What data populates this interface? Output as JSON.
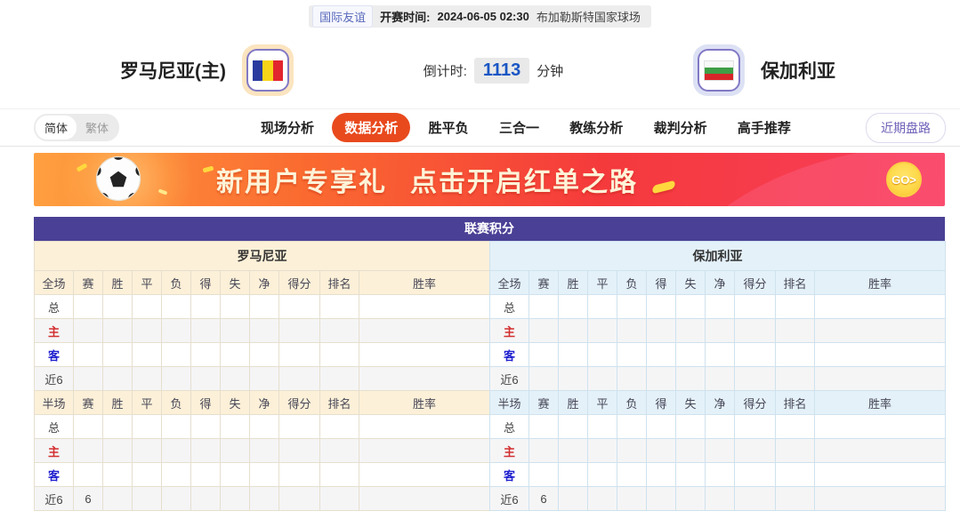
{
  "match_bar": {
    "league_badge": "国际友谊",
    "kickoff_label": "开赛时间:",
    "kickoff_time": "2024-06-05 02:30",
    "venue": "布加勒斯特国家球场"
  },
  "header": {
    "home_team": "罗马尼亚(主)",
    "away_team": "保加利亚",
    "countdown_label": "倒计时:",
    "countdown_value": "1113",
    "countdown_unit": "分钟",
    "home_flag": "romania-flag",
    "away_flag": "bulgaria-flag",
    "home_flag_colors": [
      "#2a3b9f",
      "#f7d417",
      "#e2262e"
    ],
    "away_flag_colors": [
      "#f8f8f8",
      "#3f9e45",
      "#d8252a"
    ]
  },
  "nav": {
    "lang": {
      "simplified": "简体",
      "traditional": "繁体",
      "active": "simplified"
    },
    "tabs": [
      {
        "label": "现场分析",
        "active": false
      },
      {
        "label": "数据分析",
        "active": true
      },
      {
        "label": "胜平负",
        "active": false
      },
      {
        "label": "三合一",
        "active": false
      },
      {
        "label": "教练分析",
        "active": false
      },
      {
        "label": "裁判分析",
        "active": false
      },
      {
        "label": "高手推荐",
        "active": false
      }
    ],
    "trend_button": "近期盘路",
    "active_tab_color": "#e84a1e"
  },
  "banner": {
    "title": "新用户专享礼",
    "subtitle": "点击开启红单之路",
    "go_label": "GO>"
  },
  "table": {
    "title": "联赛积分",
    "title_bg": "#4a4095",
    "columns": [
      "赛",
      "胜",
      "平",
      "负",
      "得",
      "失",
      "净",
      "得分",
      "排名",
      "胜率"
    ],
    "halves": [
      {
        "team": "罗马尼亚",
        "theme": "home",
        "theme_bg": "#fcf0d8",
        "sections": [
          {
            "period": "全场",
            "rows": [
              {
                "label": "总",
                "type": "total",
                "cells": [
                  "",
                  "",
                  "",
                  "",
                  "",
                  "",
                  "",
                  "",
                  "",
                  ""
                ]
              },
              {
                "label": "主",
                "type": "home",
                "cells": [
                  "",
                  "",
                  "",
                  "",
                  "",
                  "",
                  "",
                  "",
                  "",
                  ""
                ]
              },
              {
                "label": "客",
                "type": "away",
                "cells": [
                  "",
                  "",
                  "",
                  "",
                  "",
                  "",
                  "",
                  "",
                  "",
                  ""
                ]
              },
              {
                "label": "近6",
                "type": "recent",
                "cells": [
                  "",
                  "",
                  "",
                  "",
                  "",
                  "",
                  "",
                  "",
                  "",
                  ""
                ]
              }
            ]
          },
          {
            "period": "半场",
            "rows": [
              {
                "label": "总",
                "type": "total",
                "cells": [
                  "",
                  "",
                  "",
                  "",
                  "",
                  "",
                  "",
                  "",
                  "",
                  ""
                ]
              },
              {
                "label": "主",
                "type": "home",
                "cells": [
                  "",
                  "",
                  "",
                  "",
                  "",
                  "",
                  "",
                  "",
                  "",
                  ""
                ]
              },
              {
                "label": "客",
                "type": "away",
                "cells": [
                  "",
                  "",
                  "",
                  "",
                  "",
                  "",
                  "",
                  "",
                  "",
                  ""
                ]
              },
              {
                "label": "近6",
                "type": "recent",
                "cells": [
                  "6",
                  "",
                  "",
                  "",
                  "",
                  "",
                  "",
                  "",
                  "",
                  ""
                ]
              }
            ]
          }
        ]
      },
      {
        "team": "保加利亚",
        "theme": "away",
        "theme_bg": "#e4f1f9",
        "sections": [
          {
            "period": "全场",
            "rows": [
              {
                "label": "总",
                "type": "total",
                "cells": [
                  "",
                  "",
                  "",
                  "",
                  "",
                  "",
                  "",
                  "",
                  "",
                  ""
                ]
              },
              {
                "label": "主",
                "type": "home",
                "cells": [
                  "",
                  "",
                  "",
                  "",
                  "",
                  "",
                  "",
                  "",
                  "",
                  ""
                ]
              },
              {
                "label": "客",
                "type": "away",
                "cells": [
                  "",
                  "",
                  "",
                  "",
                  "",
                  "",
                  "",
                  "",
                  "",
                  ""
                ]
              },
              {
                "label": "近6",
                "type": "recent",
                "cells": [
                  "",
                  "",
                  "",
                  "",
                  "",
                  "",
                  "",
                  "",
                  "",
                  ""
                ]
              }
            ]
          },
          {
            "period": "半场",
            "rows": [
              {
                "label": "总",
                "type": "total",
                "cells": [
                  "",
                  "",
                  "",
                  "",
                  "",
                  "",
                  "",
                  "",
                  "",
                  ""
                ]
              },
              {
                "label": "主",
                "type": "home",
                "cells": [
                  "",
                  "",
                  "",
                  "",
                  "",
                  "",
                  "",
                  "",
                  "",
                  ""
                ]
              },
              {
                "label": "客",
                "type": "away",
                "cells": [
                  "",
                  "",
                  "",
                  "",
                  "",
                  "",
                  "",
                  "",
                  "",
                  ""
                ]
              },
              {
                "label": "近6",
                "type": "recent",
                "cells": [
                  "6",
                  "",
                  "",
                  "",
                  "",
                  "",
                  "",
                  "",
                  "",
                  ""
                ]
              }
            ]
          }
        ]
      }
    ]
  }
}
